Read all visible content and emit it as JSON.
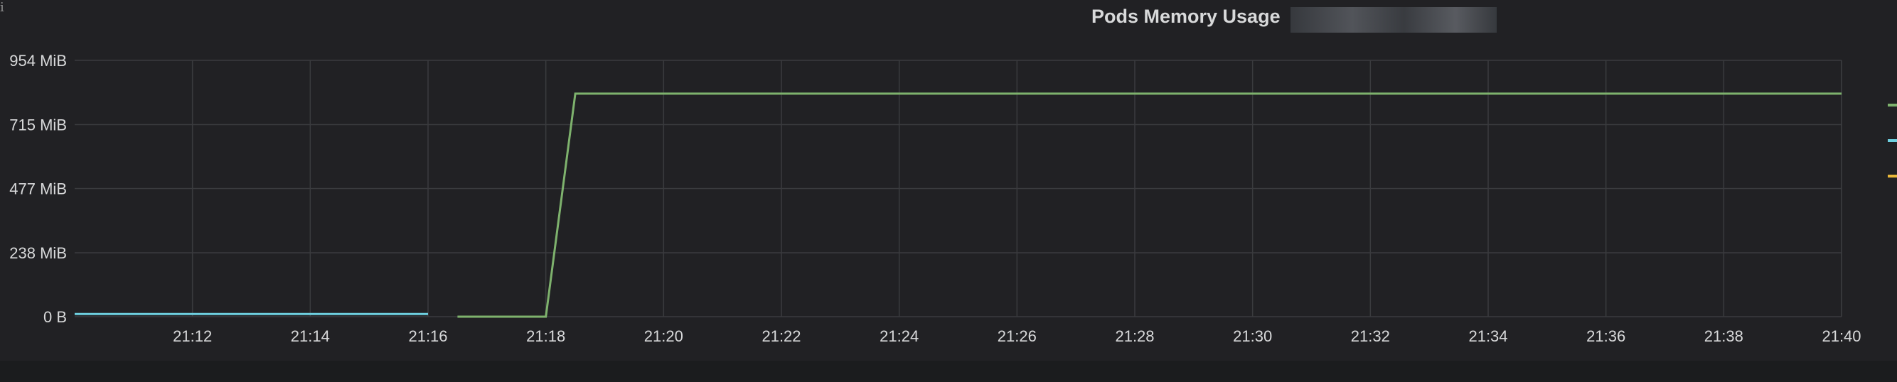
{
  "panel": {
    "title": "Pods Memory Usage",
    "info_icon": "i"
  },
  "chart_data": {
    "type": "line",
    "title": "Pods Memory Usage",
    "xlabel": "",
    "ylabel": "",
    "x_ticks": [
      "21:12",
      "21:14",
      "21:16",
      "21:18",
      "21:20",
      "21:22",
      "21:24",
      "21:26",
      "21:28",
      "21:30",
      "21:32",
      "21:34",
      "21:36",
      "21:38",
      "21:40"
    ],
    "y_ticks": [
      "0 B",
      "238 MiB",
      "477 MiB",
      "715 MiB",
      "954 MiB"
    ],
    "xlim": [
      "21:10",
      "21:40"
    ],
    "ylim": [
      0,
      954
    ],
    "y_unit": "MiB",
    "grid": true,
    "legend_position": "right",
    "series": [
      {
        "color": "#7eb26d",
        "points": [
          [
            "21:16.5",
            0
          ],
          [
            "21:18",
            0
          ],
          [
            "21:18.5",
            830
          ],
          [
            "21:40",
            830
          ]
        ]
      },
      {
        "color": "#6ed0e0",
        "points": [
          [
            "21:10",
            10
          ],
          [
            "21:16",
            10
          ]
        ]
      },
      {
        "color": "#eab839",
        "points": []
      }
    ]
  },
  "colors": {
    "background": "#212124",
    "grid": "#3a3b3e",
    "tick_text": "#d8d9da"
  }
}
